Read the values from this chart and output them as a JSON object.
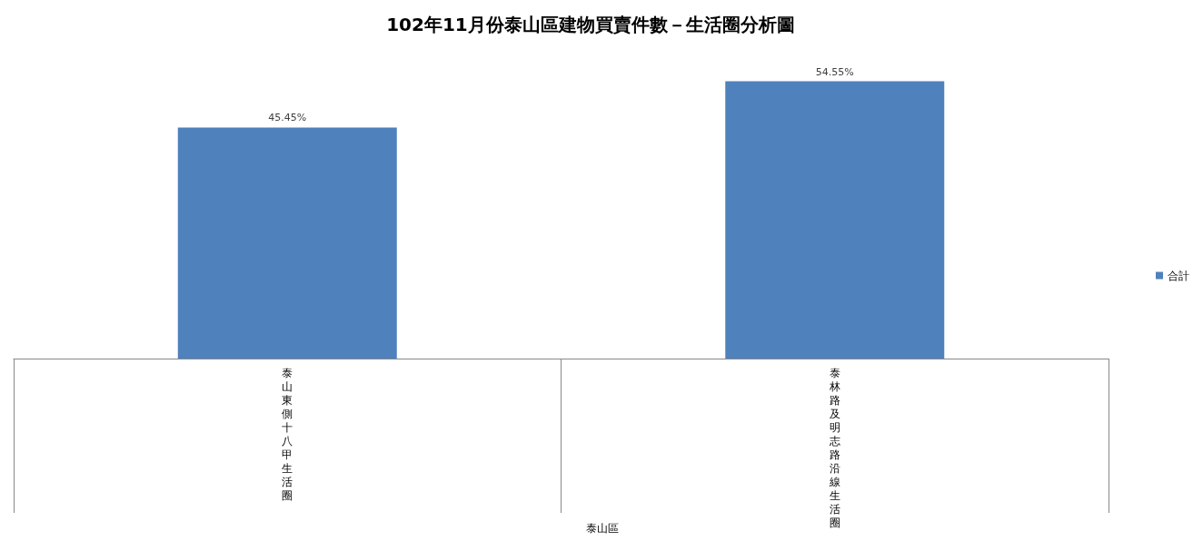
{
  "chart_data": {
    "type": "bar",
    "title": "102年11月份泰山區建物買賣件數－生活圈分析圖",
    "annotations": [
      "泰山區"
    ],
    "categories": [
      "泰山東側十八甲生活圈",
      "泰林路及明志路沿線生活圈"
    ],
    "series": [
      {
        "name": "合計",
        "color": "#4f81bd",
        "values": [
          45.45,
          54.55
        ],
        "value_labels": [
          "45.45%",
          "54.55%"
        ]
      }
    ],
    "tick_labels": "x",
    "legend": "right"
  }
}
